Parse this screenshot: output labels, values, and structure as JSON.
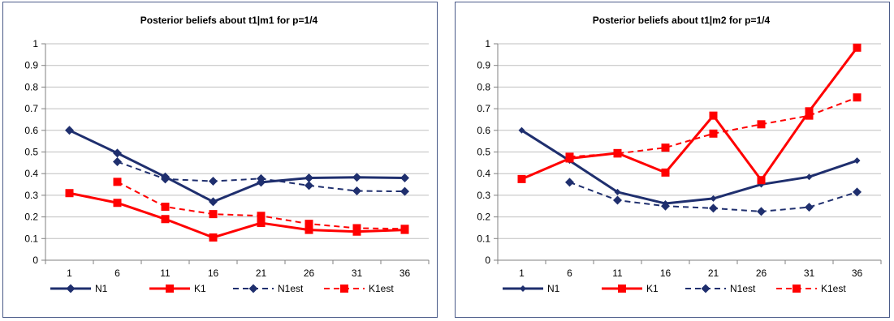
{
  "colors": {
    "navy": "#1f2f6e",
    "red": "#ff0000",
    "grid": "#bfbfbf",
    "axis": "#808080",
    "border": "#4a5a88"
  },
  "chart_data": [
    {
      "type": "line",
      "title": "Posterior beliefs about t1|m1 for p=1/4",
      "categories": [
        "1",
        "6",
        "11",
        "16",
        "21",
        "26",
        "31",
        "36"
      ],
      "ylim": [
        0,
        1
      ],
      "yticks": [
        "0",
        "0.1",
        "0.2",
        "0.3",
        "0.4",
        "0.5",
        "0.6",
        "0.7",
        "0.8",
        "0.9",
        "1"
      ],
      "grid": true,
      "legend": "bottom",
      "series": [
        {
          "name": "N1",
          "color": "#1f2f6e",
          "dashed": false,
          "marker": "diamond",
          "values": [
            0.6,
            0.495,
            0.385,
            0.27,
            0.36,
            0.38,
            0.383,
            0.38
          ]
        },
        {
          "name": "K1",
          "color": "#ff0000",
          "dashed": false,
          "marker": "square",
          "values": [
            0.31,
            0.265,
            0.19,
            0.105,
            0.172,
            0.14,
            0.132,
            0.14
          ]
        },
        {
          "name": "N1est",
          "color": "#1f2f6e",
          "dashed": true,
          "marker": "diamond",
          "values": [
            null,
            0.455,
            0.375,
            0.365,
            0.377,
            0.345,
            0.32,
            0.318
          ]
        },
        {
          "name": "K1est",
          "color": "#ff0000",
          "dashed": true,
          "marker": "square",
          "values": [
            null,
            0.362,
            0.247,
            0.213,
            0.205,
            0.168,
            0.148,
            0.145
          ]
        }
      ]
    },
    {
      "type": "line",
      "title": "Posterior beliefs about t1|m2 for p=1/4",
      "categories": [
        "1",
        "6",
        "11",
        "16",
        "21",
        "26",
        "31",
        "36"
      ],
      "ylim": [
        0,
        1
      ],
      "yticks": [
        "0",
        "0.1",
        "0.2",
        "0.3",
        "0.4",
        "0.5",
        "0.6",
        "0.7",
        "0.8",
        "0.9",
        "1"
      ],
      "grid": true,
      "legend": "bottom",
      "series": [
        {
          "name": "N1",
          "color": "#1f2f6e",
          "dashed": false,
          "marker": "diamond-small",
          "values": [
            0.6,
            0.46,
            0.315,
            0.262,
            0.285,
            0.35,
            0.385,
            0.46
          ]
        },
        {
          "name": "K1",
          "color": "#ff0000",
          "dashed": false,
          "marker": "square",
          "values": [
            0.375,
            0.47,
            0.495,
            0.405,
            0.668,
            0.37,
            0.688,
            0.982
          ]
        },
        {
          "name": "N1est",
          "color": "#1f2f6e",
          "dashed": true,
          "marker": "diamond",
          "values": [
            null,
            0.36,
            0.277,
            0.25,
            0.24,
            0.225,
            0.245,
            0.315
          ]
        },
        {
          "name": "K1est",
          "color": "#ff0000",
          "dashed": true,
          "marker": "square",
          "values": [
            null,
            0.478,
            0.493,
            0.52,
            0.585,
            0.628,
            0.668,
            0.752
          ]
        }
      ]
    }
  ]
}
